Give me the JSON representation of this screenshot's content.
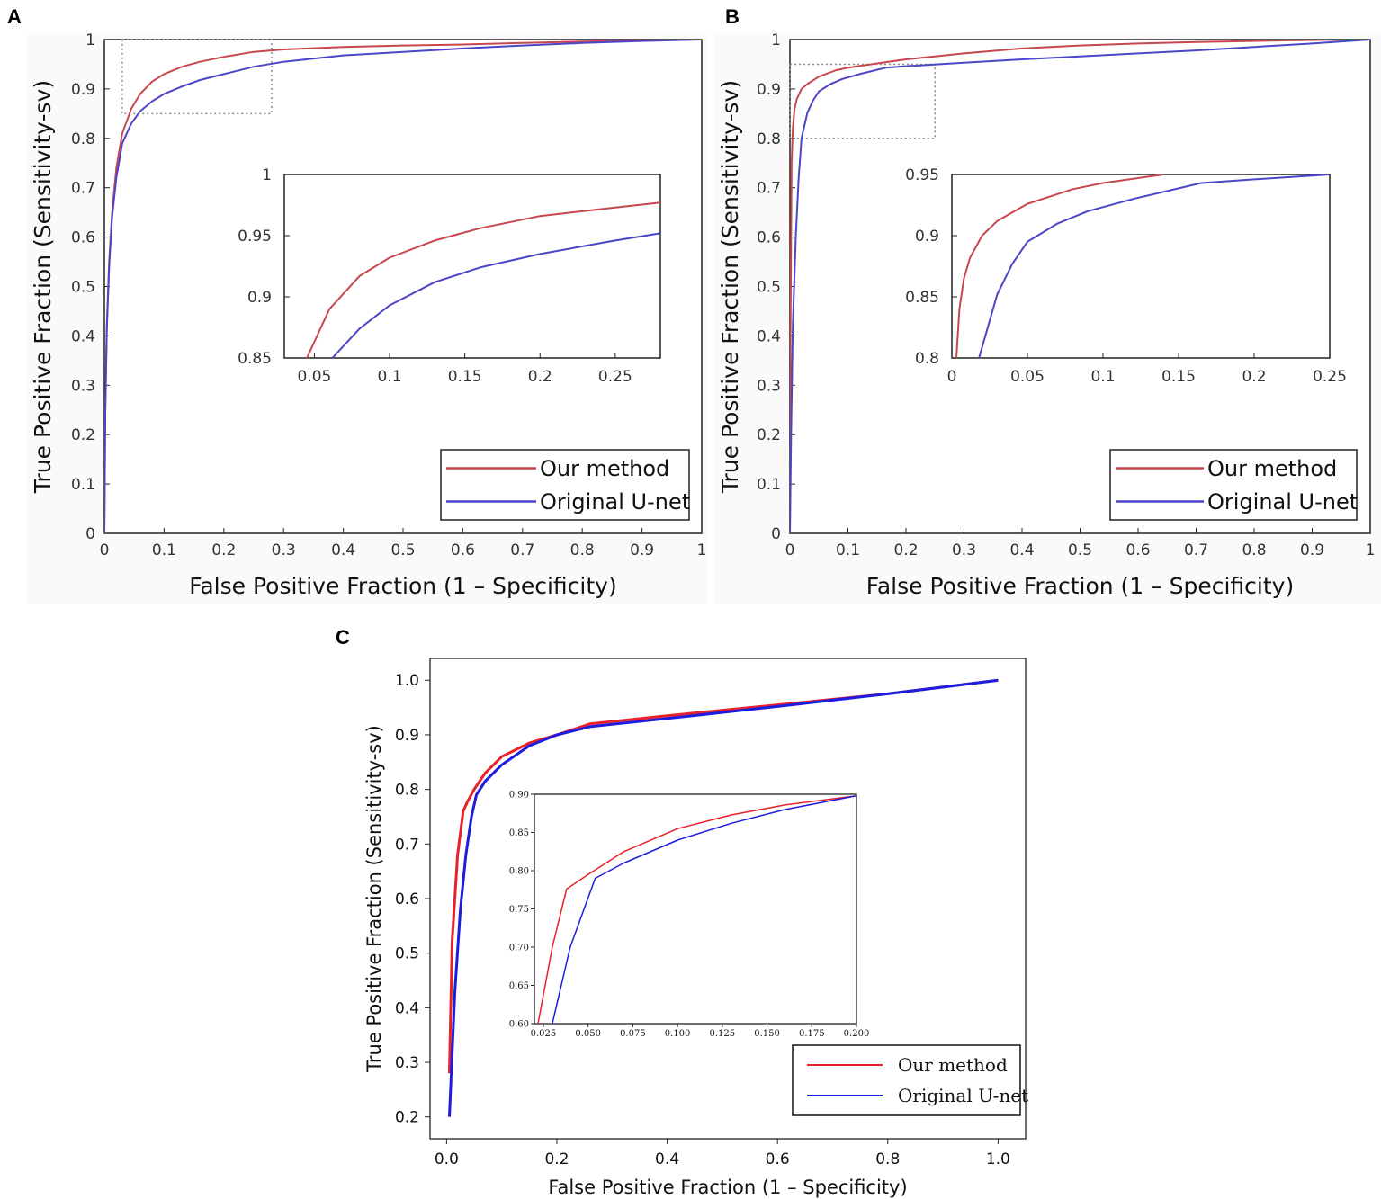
{
  "figure": {
    "panel_labels": [
      "A",
      "B",
      "C"
    ]
  },
  "chart_data": [
    {
      "panel": "A",
      "type": "line",
      "title": "",
      "xlabel": "False Positive Fraction (1 – Specificity)",
      "ylabel": "True Positive Fraction (Sensitivity-sv)",
      "xlim": [
        0,
        1
      ],
      "ylim": [
        0,
        1
      ],
      "xticks": [
        0,
        0.1,
        0.2,
        0.3,
        0.4,
        0.5,
        0.6,
        0.7,
        0.8,
        0.9,
        1
      ],
      "xtick_labels": [
        "0",
        "0.1",
        "0.2",
        "0.3",
        "0.4",
        "0.5",
        "0.6",
        "0.7",
        "0.8",
        "0.9",
        "1"
      ],
      "yticks": [
        0,
        0.1,
        0.2,
        0.3,
        0.4,
        0.5,
        0.6,
        0.7,
        0.8,
        0.9,
        1
      ],
      "ytick_labels": [
        "0",
        "0.1",
        "0.2",
        "0.3",
        "0.4",
        "0.5",
        "0.6",
        "0.7",
        "0.8",
        "0.9",
        "1"
      ],
      "grid": false,
      "legend_position": "bottom-right",
      "zoom_box": {
        "x": [
          0.03,
          0.28
        ],
        "y": [
          0.85,
          1.0
        ]
      },
      "series": [
        {
          "name": "Our method",
          "color": "#c8474f",
          "x": [
            0,
            0.0015,
            0.004,
            0.008,
            0.013,
            0.02,
            0.03,
            0.045,
            0.06,
            0.08,
            0.1,
            0.13,
            0.16,
            0.2,
            0.25,
            0.3,
            0.4,
            0.5,
            0.6,
            0.7,
            0.8,
            0.9,
            1.0
          ],
          "y": [
            0,
            0.25,
            0.42,
            0.55,
            0.65,
            0.74,
            0.81,
            0.86,
            0.89,
            0.915,
            0.93,
            0.945,
            0.955,
            0.965,
            0.975,
            0.98,
            0.985,
            0.988,
            0.99,
            0.993,
            0.996,
            0.998,
            1.0
          ]
        },
        {
          "name": "Original U-net",
          "color": "#4a46c7",
          "x": [
            0,
            0.0015,
            0.004,
            0.008,
            0.013,
            0.02,
            0.03,
            0.045,
            0.06,
            0.08,
            0.1,
            0.13,
            0.16,
            0.2,
            0.25,
            0.3,
            0.4,
            0.5,
            0.6,
            0.7,
            0.8,
            0.9,
            1.0
          ],
          "y": [
            0,
            0.24,
            0.41,
            0.54,
            0.64,
            0.72,
            0.79,
            0.83,
            0.855,
            0.875,
            0.89,
            0.905,
            0.918,
            0.93,
            0.945,
            0.955,
            0.968,
            0.975,
            0.982,
            0.988,
            0.993,
            0.997,
            1.0
          ]
        }
      ],
      "inset": {
        "xlim": [
          0.03,
          0.28
        ],
        "ylim": [
          0.85,
          1.0
        ],
        "xticks": [
          0.05,
          0.1,
          0.15,
          0.2,
          0.25
        ],
        "xtick_labels": [
          "0.05",
          "0.1",
          "0.15",
          "0.2",
          "0.25"
        ],
        "yticks": [
          0.85,
          0.9,
          0.95,
          1
        ],
        "ytick_labels": [
          "0.85",
          "0.9",
          "0.95",
          "1"
        ],
        "series": [
          {
            "name": "Our method",
            "color": "#c8474f",
            "x": [
              0.045,
              0.06,
              0.08,
              0.1,
              0.13,
              0.16,
              0.2,
              0.25,
              0.28
            ],
            "y": [
              0.85,
              0.89,
              0.917,
              0.932,
              0.946,
              0.956,
              0.966,
              0.973,
              0.977
            ]
          },
          {
            "name": "Original U-net",
            "color": "#4a46c7",
            "x": [
              0.062,
              0.08,
              0.1,
              0.13,
              0.16,
              0.2,
              0.25,
              0.28
            ],
            "y": [
              0.85,
              0.874,
              0.893,
              0.912,
              0.924,
              0.935,
              0.946,
              0.952
            ]
          }
        ]
      }
    },
    {
      "panel": "B",
      "type": "line",
      "title": "",
      "xlabel": "False Positive Fraction (1 – Specificity)",
      "ylabel": "True Positive Fraction (Sensitivity-sv)",
      "xlim": [
        0,
        1
      ],
      "ylim": [
        0,
        1
      ],
      "xticks": [
        0,
        0.1,
        0.2,
        0.3,
        0.4,
        0.5,
        0.6,
        0.7,
        0.8,
        0.9,
        1
      ],
      "xtick_labels": [
        "0",
        "0.1",
        "0.2",
        "0.3",
        "0.4",
        "0.5",
        "0.6",
        "0.7",
        "0.8",
        "0.9",
        "1"
      ],
      "yticks": [
        0,
        0.1,
        0.2,
        0.3,
        0.4,
        0.5,
        0.6,
        0.7,
        0.8,
        0.9,
        1
      ],
      "ytick_labels": [
        "0",
        "0.1",
        "0.2",
        "0.3",
        "0.4",
        "0.5",
        "0.6",
        "0.7",
        "0.8",
        "0.9",
        "1"
      ],
      "grid": false,
      "legend_position": "bottom-right",
      "zoom_box": {
        "x": [
          0,
          0.25
        ],
        "y": [
          0.8,
          0.95
        ]
      },
      "series": [
        {
          "name": "Our method",
          "color": "#c8474f",
          "x": [
            0,
            0.001,
            0.002,
            0.003,
            0.005,
            0.008,
            0.012,
            0.02,
            0.03,
            0.05,
            0.08,
            0.1,
            0.14,
            0.2,
            0.3,
            0.4,
            0.5,
            0.6,
            0.7,
            0.8,
            0.9,
            1.0
          ],
          "y": [
            0,
            0.4,
            0.6,
            0.75,
            0.82,
            0.86,
            0.88,
            0.9,
            0.91,
            0.925,
            0.938,
            0.943,
            0.95,
            0.96,
            0.972,
            0.982,
            0.988,
            0.992,
            0.995,
            0.997,
            0.999,
            1.0
          ]
        },
        {
          "name": "Original U-net",
          "color": "#4a46c7",
          "x": [
            0,
            0.002,
            0.005,
            0.01,
            0.015,
            0.02,
            0.03,
            0.04,
            0.05,
            0.07,
            0.09,
            0.12,
            0.165,
            0.2,
            0.3,
            0.4,
            0.5,
            0.6,
            0.7,
            0.8,
            0.9,
            1.0
          ],
          "y": [
            0,
            0.2,
            0.42,
            0.6,
            0.72,
            0.8,
            0.852,
            0.877,
            0.895,
            0.91,
            0.92,
            0.93,
            0.943,
            0.946,
            0.953,
            0.96,
            0.966,
            0.972,
            0.978,
            0.985,
            0.992,
            1.0
          ]
        }
      ],
      "inset": {
        "xlim": [
          0,
          0.25
        ],
        "ylim": [
          0.8,
          0.95
        ],
        "xticks": [
          0,
          0.05,
          0.1,
          0.15,
          0.2,
          0.25
        ],
        "xtick_labels": [
          "0",
          "0.05",
          "0.1",
          "0.15",
          "0.2",
          "0.25"
        ],
        "yticks": [
          0.8,
          0.85,
          0.9,
          0.95
        ],
        "ytick_labels": [
          "0.8",
          "0.85",
          "0.9",
          "0.95"
        ],
        "series": [
          {
            "name": "Our method",
            "color": "#c8474f",
            "x": [
              0.003,
              0.005,
              0.008,
              0.012,
              0.02,
              0.03,
              0.05,
              0.08,
              0.1,
              0.14
            ],
            "y": [
              0.8,
              0.84,
              0.865,
              0.882,
              0.9,
              0.912,
              0.926,
              0.938,
              0.943,
              0.95
            ]
          },
          {
            "name": "Original U-net",
            "color": "#4a46c7",
            "x": [
              0.018,
              0.03,
              0.04,
              0.05,
              0.07,
              0.09,
              0.12,
              0.165,
              0.2,
              0.25
            ],
            "y": [
              0.8,
              0.852,
              0.877,
              0.895,
              0.91,
              0.92,
              0.93,
              0.943,
              0.946,
              0.95
            ]
          }
        ]
      }
    },
    {
      "panel": "C",
      "type": "line",
      "title": "",
      "xlabel": "False Positive Fraction (1 – Specificity)",
      "ylabel": "True Positive Fraction (Sensitivity-sv)",
      "xlim": [
        -0.03,
        1.05
      ],
      "ylim": [
        0.16,
        1.04
      ],
      "xticks": [
        0,
        0.2,
        0.4,
        0.6,
        0.8,
        1.0
      ],
      "xtick_labels": [
        "0.0",
        "0.2",
        "0.4",
        "0.6",
        "0.8",
        "1.0"
      ],
      "yticks": [
        0.2,
        0.3,
        0.4,
        0.5,
        0.6,
        0.7,
        0.8,
        0.9,
        1.0
      ],
      "ytick_labels": [
        "0.2",
        "0.3",
        "0.4",
        "0.5",
        "0.6",
        "0.7",
        "0.8",
        "0.9",
        "1.0"
      ],
      "grid": false,
      "legend_position": "bottom-right",
      "series": [
        {
          "name": "Our method",
          "color": "#e8212a",
          "x": [
            0.005,
            0.01,
            0.02,
            0.03,
            0.038,
            0.05,
            0.07,
            0.1,
            0.15,
            0.2,
            0.26,
            0.4,
            0.6,
            0.8,
            1.0
          ],
          "y": [
            0.28,
            0.52,
            0.68,
            0.76,
            0.778,
            0.8,
            0.83,
            0.86,
            0.885,
            0.9,
            0.92,
            0.935,
            0.955,
            0.975,
            1.0
          ]
        },
        {
          "name": "Original U-net",
          "color": "#1d1de0",
          "x": [
            0.005,
            0.015,
            0.025,
            0.035,
            0.045,
            0.054,
            0.07,
            0.1,
            0.15,
            0.2,
            0.26,
            0.4,
            0.6,
            0.8,
            1.0
          ],
          "y": [
            0.2,
            0.43,
            0.58,
            0.68,
            0.75,
            0.79,
            0.815,
            0.845,
            0.88,
            0.9,
            0.915,
            0.93,
            0.952,
            0.975,
            1.0
          ]
        }
      ],
      "inset": {
        "xlim": [
          0.02,
          0.2
        ],
        "ylim": [
          0.6,
          0.9
        ],
        "xticks": [
          0.025,
          0.05,
          0.075,
          0.1,
          0.125,
          0.15,
          0.175,
          0.2
        ],
        "xtick_labels": [
          "0.025",
          "0.050",
          "0.075",
          "0.100",
          "0.125",
          "0.150",
          "0.175",
          "0.200"
        ],
        "yticks": [
          0.6,
          0.65,
          0.7,
          0.75,
          0.8,
          0.85,
          0.9
        ],
        "ytick_labels": [
          "0.60",
          "0.65",
          "0.70",
          "0.75",
          "0.80",
          "0.85",
          "0.90"
        ],
        "series": [
          {
            "name": "Our method",
            "color": "#e8212a",
            "x": [
              0.022,
              0.03,
              0.038,
              0.05,
              0.07,
              0.1,
              0.13,
              0.16,
              0.2
            ],
            "y": [
              0.6,
              0.7,
              0.776,
              0.795,
              0.825,
              0.855,
              0.873,
              0.886,
              0.898
            ]
          },
          {
            "name": "Original U-net",
            "color": "#1d1de0",
            "x": [
              0.03,
              0.04,
              0.054,
              0.07,
              0.1,
              0.13,
              0.16,
              0.2
            ],
            "y": [
              0.6,
              0.7,
              0.79,
              0.81,
              0.84,
              0.862,
              0.88,
              0.898
            ]
          }
        ]
      }
    }
  ]
}
